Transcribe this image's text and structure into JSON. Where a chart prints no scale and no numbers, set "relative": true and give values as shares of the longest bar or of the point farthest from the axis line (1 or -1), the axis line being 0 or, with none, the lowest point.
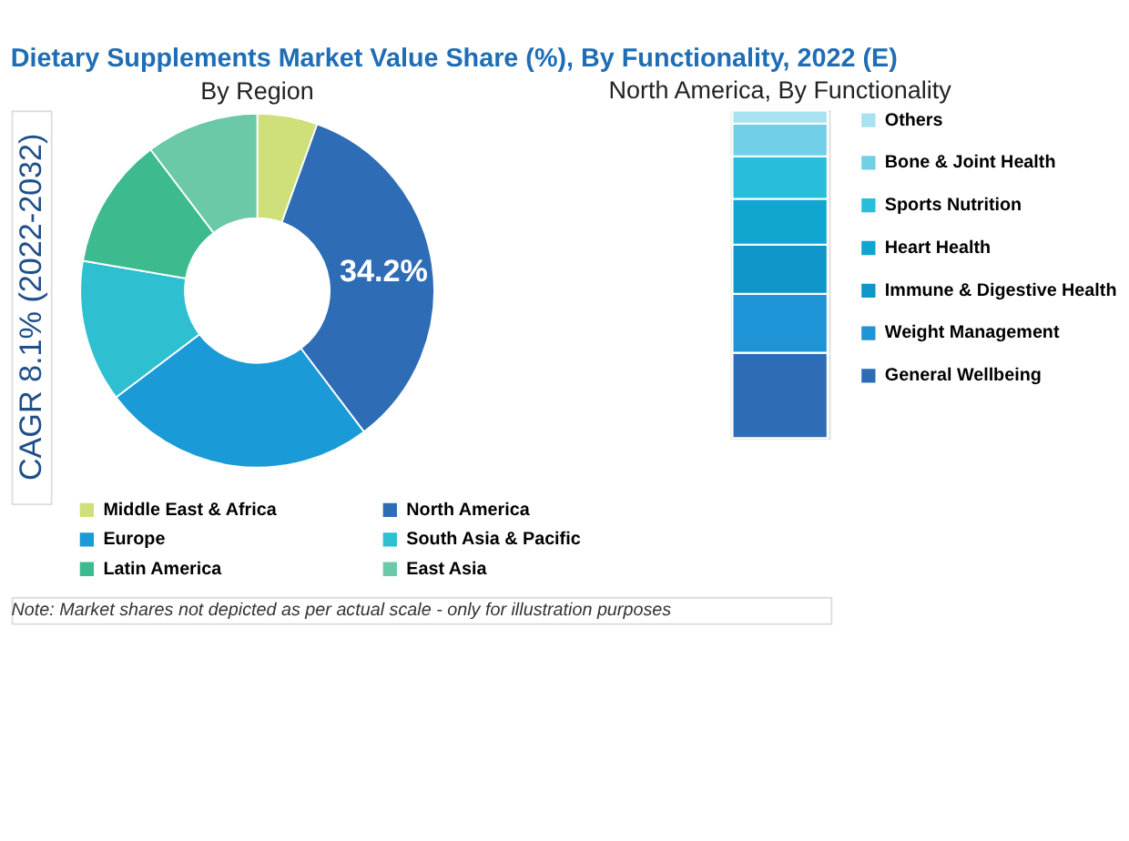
{
  "chart_data": [
    {
      "type": "donut",
      "title": "Dietary Supplements Market Value Share (%), By Functionality, 2022 (E)",
      "subtitle": "By Region",
      "categories": [
        "Middle East & Africa",
        "North America",
        "Europe",
        "South Asia & Pacific",
        "Latin America",
        "East Asia"
      ],
      "values": [
        5.5,
        34.2,
        25,
        13,
        12,
        10.3
      ],
      "colors": [
        "#cfe07a",
        "#2e6db5",
        "#1a9ad6",
        "#2ebfd0",
        "#3dbb8e",
        "#6cc9a8"
      ],
      "value_labels": [
        null,
        "34.2%",
        null,
        null,
        null,
        null
      ],
      "legend": "bottom",
      "annotations": [
        "CAGR 8.1% (2022-2032)",
        "Note: Market shares not depicted as per actual scale - only for illustration purposes"
      ]
    },
    {
      "type": "bar",
      "title": "North America, By Functionality",
      "stacked": true,
      "relative": true,
      "categories": [
        null
      ],
      "legend": "right",
      "series": [
        {
          "name": "General Wellbeing",
          "color": "#2e6db5",
          "values": [
            0.26
          ]
        },
        {
          "name": "Weight Management",
          "color": "#1e93d6",
          "values": [
            0.18
          ]
        },
        {
          "name": "Immune & Digestive Health",
          "color": "#0f96c9",
          "values": [
            0.15
          ]
        },
        {
          "name": "Heart Health",
          "color": "#10a6cf",
          "values": [
            0.14
          ]
        },
        {
          "name": "Sports Nutrition",
          "color": "#28bddb",
          "values": [
            0.13
          ]
        },
        {
          "name": "Bone & Joint Health",
          "color": "#6fd0e6",
          "values": [
            0.1
          ]
        },
        {
          "name": "Others",
          "color": "#a8e2f0",
          "values": [
            0.04
          ]
        }
      ]
    }
  ]
}
